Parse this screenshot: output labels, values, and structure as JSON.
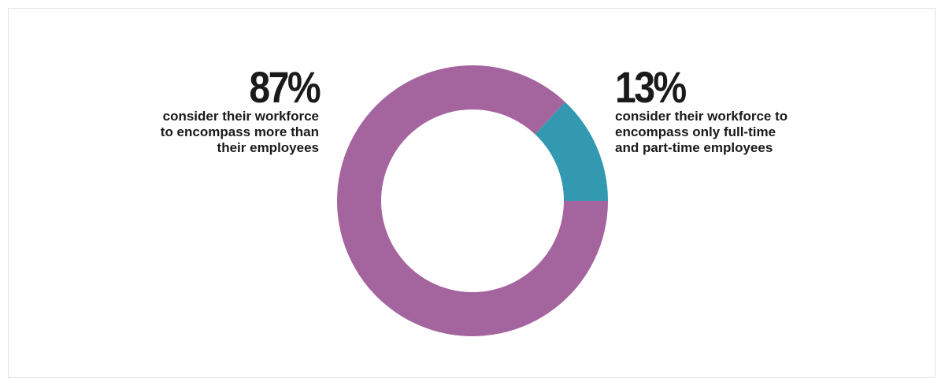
{
  "chart_data": {
    "type": "pie",
    "donut": true,
    "slices": [
      {
        "label": "consider their workforce to encompass more than their employees",
        "value": 87,
        "value_label": "87%",
        "color": "#a4649e",
        "desc_lines": [
          "consider their workforce",
          "to encompass more than",
          "their employees"
        ]
      },
      {
        "label": "consider their workforce to encompass only full-time and part-time employees",
        "value": 13,
        "value_label": "13%",
        "color": "#3399b0",
        "desc_lines": [
          "consider their workforce to",
          "encompass only full-time",
          "and part-time employees"
        ]
      }
    ]
  }
}
